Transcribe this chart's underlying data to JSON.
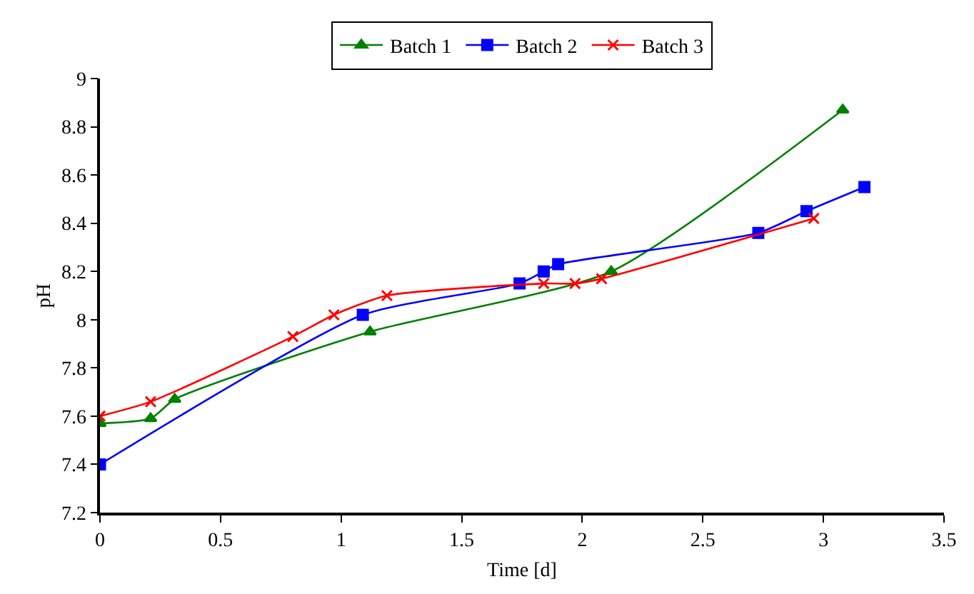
{
  "chart_data": {
    "type": "line",
    "xlabel": "Time [d]",
    "ylabel": "pH",
    "xlim": [
      0,
      3.5
    ],
    "xticks": [
      0,
      0.5,
      1,
      1.5,
      2,
      2.5,
      3,
      3.5
    ],
    "ylim": [
      7.2,
      9
    ],
    "yticks": [
      7.2,
      7.4,
      7.6,
      7.8,
      8,
      8.2,
      8.4,
      8.6,
      8.8,
      9
    ],
    "legend": "top",
    "line_style": "solid",
    "series": [
      {
        "name": "Batch 1",
        "color": "#008000",
        "marker": "triangle",
        "x": [
          0,
          0.21,
          0.31,
          1.12,
          2.12,
          3.08
        ],
        "values": [
          7.57,
          7.59,
          7.67,
          7.95,
          8.2,
          8.87
        ]
      },
      {
        "name": "Batch 2",
        "color": "#0000ff",
        "marker": "square",
        "x": [
          0,
          1.09,
          1.74,
          1.84,
          1.9,
          2.73,
          2.93,
          3.17
        ],
        "values": [
          7.4,
          8.02,
          8.15,
          8.2,
          8.23,
          8.36,
          8.45,
          8.55
        ]
      },
      {
        "name": "Batch 3",
        "color": "#ff0000",
        "marker": "cross",
        "x": [
          0,
          0.21,
          0.8,
          0.97,
          1.19,
          1.84,
          1.97,
          2.08,
          2.96
        ],
        "values": [
          7.6,
          7.66,
          7.93,
          8.02,
          8.1,
          8.15,
          8.15,
          8.17,
          8.42
        ]
      }
    ]
  }
}
